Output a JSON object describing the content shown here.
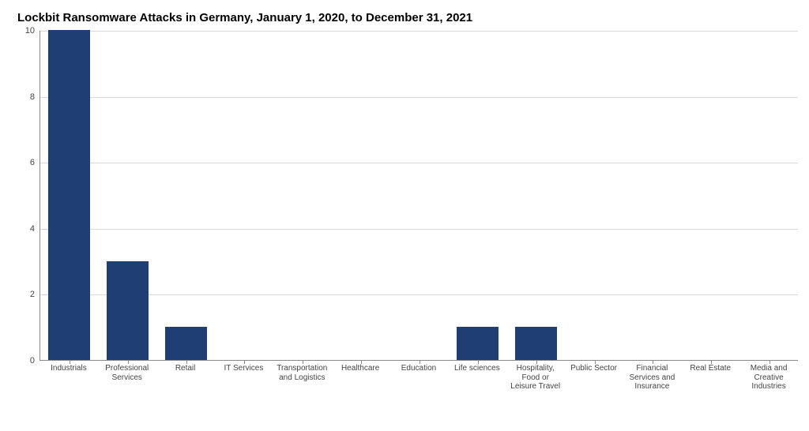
{
  "chart": {
    "type": "bar",
    "title": "Lockbit Ransomware Attacks in Germany, January 1, 2020, to December 31, 2021",
    "title_fontsize": 15,
    "title_fontweight": "bold",
    "background_color": "#ffffff",
    "grid_color": "#d9d9d9",
    "axis_color": "#888888",
    "tick_label_color": "#444444",
    "tick_fontsize": 11,
    "xlabel_fontsize": 10,
    "categories": [
      "Industrials",
      "Professional Services",
      "Retail",
      "IT Services",
      "Transportation and Logistics",
      "Healthcare",
      "Education",
      "Life sciences",
      "Hospitality, Food or Leisure Travel",
      "Public Sector",
      "Financial Services and Insurance",
      "Real Estate",
      "Media and Creative Industries"
    ],
    "values": [
      10,
      3,
      1,
      0,
      0,
      0,
      0,
      1,
      1,
      0,
      0,
      0,
      0
    ],
    "bar_color": "#1f3e73",
    "bar_width_ratio": 0.72,
    "ylim": [
      0,
      10
    ],
    "ytick_step": 2,
    "yticks": [
      0,
      2,
      4,
      6,
      8,
      10
    ]
  }
}
